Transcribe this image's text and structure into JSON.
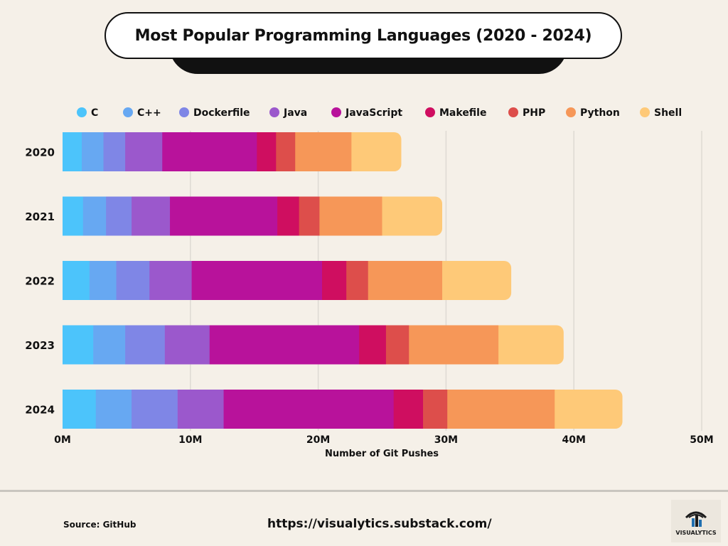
{
  "title": "Most Popular Programming Languages (2020 - 2024)",
  "footer": {
    "source": "Source: GitHub",
    "url": "https://visualytics.substack.com/",
    "logo_text": "VISUALYTICS"
  },
  "chart_data": {
    "type": "bar",
    "orientation": "horizontal",
    "stacked": true,
    "title": "Most Popular Programming Languages (2020 - 2024)",
    "xlabel": "Number of Git Pushes",
    "ylabel": "",
    "xlim": [
      0,
      50000000
    ],
    "x_ticks": [
      0,
      10000000,
      20000000,
      30000000,
      40000000,
      50000000
    ],
    "x_tick_labels": [
      "0M",
      "10M",
      "20M",
      "30M",
      "40M",
      "50M"
    ],
    "grid": true,
    "legend_position": "top",
    "categories": [
      "2020",
      "2021",
      "2022",
      "2023",
      "2024"
    ],
    "series": [
      {
        "name": "C",
        "color": "#4cc4fb",
        "values": [
          1500000,
          1600000,
          2100000,
          2400000,
          2600000
        ]
      },
      {
        "name": "C++",
        "color": "#67a8f2",
        "values": [
          1700000,
          1800000,
          2100000,
          2500000,
          2800000
        ]
      },
      {
        "name": "Dockerfile",
        "color": "#7f86e6",
        "values": [
          1700000,
          2000000,
          2600000,
          3100000,
          3600000
        ]
      },
      {
        "name": "Java",
        "color": "#9b58cc",
        "values": [
          2900000,
          3000000,
          3300000,
          3500000,
          3600000
        ]
      },
      {
        "name": "JavaScript",
        "color": "#b8129b",
        "values": [
          7400000,
          8400000,
          10200000,
          11700000,
          13300000
        ]
      },
      {
        "name": "Makefile",
        "color": "#cf0e60",
        "values": [
          1500000,
          1700000,
          1900000,
          2100000,
          2300000
        ]
      },
      {
        "name": "PHP",
        "color": "#dd4e4b",
        "values": [
          1500000,
          1600000,
          1700000,
          1800000,
          1900000
        ]
      },
      {
        "name": "Python",
        "color": "#f69758",
        "values": [
          4400000,
          4900000,
          5800000,
          7000000,
          8400000
        ]
      },
      {
        "name": "Shell",
        "color": "#fec978",
        "values": [
          3900000,
          4700000,
          5400000,
          5100000,
          5300000
        ]
      }
    ]
  }
}
